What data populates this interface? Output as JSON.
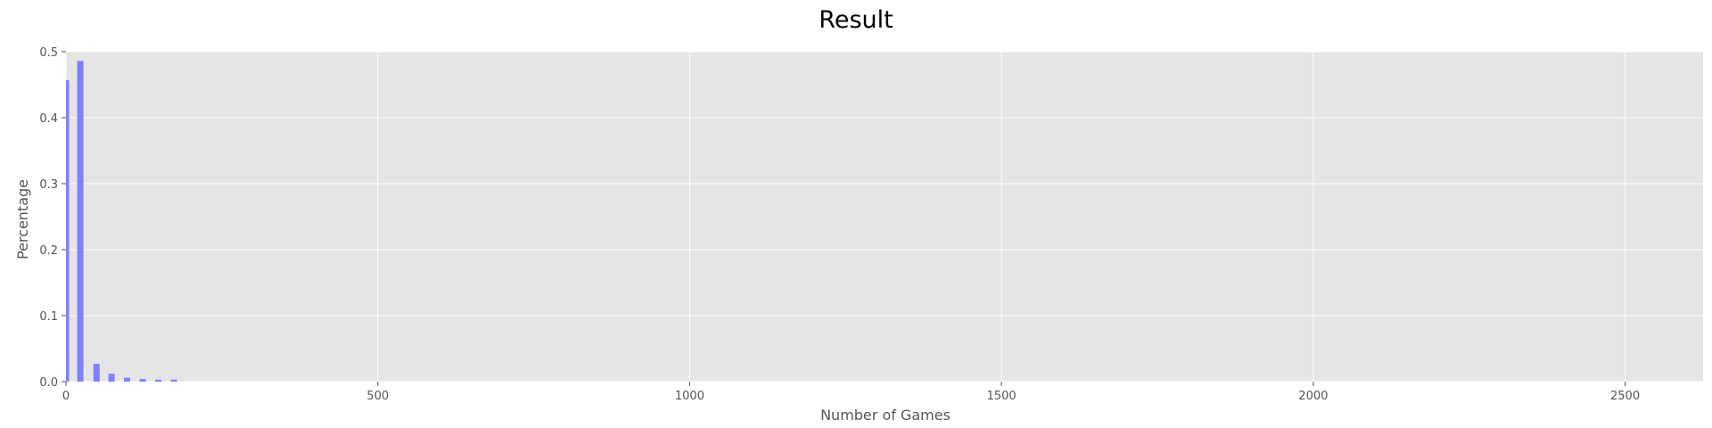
{
  "chart_data": {
    "type": "bar",
    "title": "Result",
    "xlabel": "Number of Games",
    "ylabel": "Percentage",
    "xlim": [
      0,
      2625
    ],
    "ylim": [
      0,
      0.5
    ],
    "x_ticks": [
      0,
      500,
      1000,
      1500,
      2000,
      2500
    ],
    "y_ticks": [
      0.0,
      0.1,
      0.2,
      0.3,
      0.4,
      0.5
    ],
    "x_tick_labels": [
      "0",
      "500",
      "1000",
      "1500",
      "2000",
      "2500"
    ],
    "y_tick_labels": [
      "0.0",
      "0.1",
      "0.2",
      "0.3",
      "0.4",
      "0.5"
    ],
    "grid": true,
    "bar_width": 10,
    "x": [
      0,
      23,
      49,
      73,
      98,
      123,
      148,
      173
    ],
    "values": [
      0.457,
      0.486,
      0.027,
      0.012,
      0.006,
      0.004,
      0.003,
      0.003
    ],
    "colors": {
      "bar": "#8080ff",
      "plot_background": "#e5e5e5",
      "grid": "#ffffff",
      "figure_background": "#ffffff"
    }
  }
}
